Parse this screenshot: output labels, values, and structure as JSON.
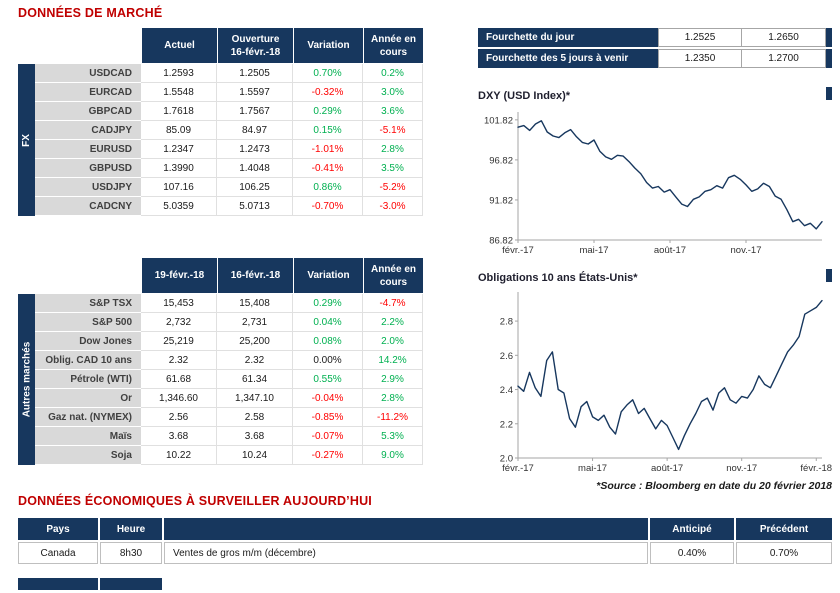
{
  "sections": {
    "market_title": "DONNÉES DE MARCHÉ",
    "econ_title": "DONNÉES ÉCONOMIQUES À SURVEILLER AUJOURD’HUI",
    "source_note": "*Source : Bloomberg en date du 20 février 2018"
  },
  "colors": {
    "navy": "#17375E",
    "title_red": "#C00000",
    "label_gray": "#D9D9D9",
    "positive": "#00B050",
    "negative": "#FF0000",
    "neutral": "#1a1a1a",
    "chart_line": "#17375E",
    "axis_gray": "#A6A6A6"
  },
  "fx_table": {
    "side_label": "FX",
    "col_headers": [
      [
        "Actuel"
      ],
      [
        "Ouverture",
        "16-févr.-18"
      ],
      [
        "Variation"
      ],
      [
        "Année en",
        "cours"
      ]
    ],
    "col_keys": [
      "actuel",
      "ouverture",
      "variation",
      "annee"
    ],
    "rows": [
      [
        "USDCAD",
        "1.2593",
        "1.2505",
        "0.70%",
        "0.2%"
      ],
      [
        "EURCAD",
        "1.5548",
        "1.5597",
        "-0.32%",
        "3.0%"
      ],
      [
        "GBPCAD",
        "1.7618",
        "1.7567",
        "0.29%",
        "3.6%"
      ],
      [
        "CADJPY",
        "85.09",
        "84.97",
        "0.15%",
        "-5.1%"
      ],
      [
        "EURUSD",
        "1.2347",
        "1.2473",
        "-1.01%",
        "2.8%"
      ],
      [
        "GBPUSD",
        "1.3990",
        "1.4048",
        "-0.41%",
        "3.5%"
      ],
      [
        "USDJPY",
        "107.16",
        "106.25",
        "0.86%",
        "-5.2%"
      ],
      [
        "CADCNY",
        "5.0359",
        "5.0713",
        "-0.70%",
        "-3.0%"
      ]
    ]
  },
  "markets_table": {
    "side_label": "Autres marchés",
    "col_headers": [
      [
        "19-févr.-18"
      ],
      [
        "16-févr.-18"
      ],
      [
        "Variation"
      ],
      [
        "Année en",
        "cours"
      ]
    ],
    "col_keys": [
      "19fev",
      "16fev",
      "variation",
      "annee"
    ],
    "rows": [
      [
        "S&P TSX",
        "15,453",
        "15,408",
        "0.29%",
        "-4.7%"
      ],
      [
        "S&P 500",
        "2,732",
        "2,731",
        "0.04%",
        "2.2%"
      ],
      [
        "Dow Jones",
        "25,219",
        "25,200",
        "0.08%",
        "2.0%"
      ],
      [
        "Oblig. CAD 10 ans",
        "2.32",
        "2.32",
        "0.00%",
        "14.2%"
      ],
      [
        "Pétrole (WTI)",
        "61.68",
        "61.34",
        "0.55%",
        "2.9%"
      ],
      [
        "Or",
        "1,346.60",
        "1,347.10",
        "-0.04%",
        "2.8%"
      ],
      [
        "Gaz nat. (NYMEX)",
        "2.56",
        "2.58",
        "-0.85%",
        "-11.2%"
      ],
      [
        "Maïs",
        "3.68",
        "3.68",
        "-0.07%",
        "5.3%"
      ],
      [
        "Soja",
        "10.22",
        "10.24",
        "-0.27%",
        "9.0%"
      ]
    ]
  },
  "fx_range": {
    "rows": [
      {
        "label": "Fourchette du jour",
        "low": "1.2525",
        "high": "1.2650"
      },
      {
        "label": "Fourchette des 5 jours à venir",
        "low": "1.2350",
        "high": "1.2700"
      }
    ]
  },
  "chart_data": [
    {
      "type": "line",
      "title": "DXY (USD Index)*",
      "ylim": [
        86.82,
        102.8
      ],
      "y_tick_values": [
        86.82,
        91.82,
        96.82,
        101.82
      ],
      "y_tick_labels": [
        "86.82",
        "91.82",
        "96.82",
        "101.82"
      ],
      "x_tick_labels": [
        "févr.-17",
        "mai-17",
        "août-17",
        "nov.-17"
      ],
      "x_tick_positions": [
        0,
        13,
        26,
        39
      ],
      "values": [
        100.9,
        101.1,
        100.5,
        101.3,
        101.7,
        100.3,
        99.8,
        99.6,
        100.2,
        100.6,
        99.7,
        99.0,
        98.8,
        99.3,
        97.9,
        97.2,
        96.9,
        97.4,
        97.3,
        96.6,
        95.8,
        95.1,
        94.0,
        93.3,
        93.5,
        92.8,
        93.1,
        92.2,
        91.3,
        91.0,
        91.9,
        92.2,
        92.9,
        93.1,
        93.6,
        93.3,
        94.6,
        94.9,
        94.4,
        93.7,
        92.9,
        93.2,
        93.9,
        93.5,
        92.3,
        91.9,
        90.6,
        89.1,
        89.4,
        88.6,
        88.9,
        88.2,
        89.1
      ]
    },
    {
      "type": "line",
      "title": "Obligations 10 ans États-Unis*",
      "ylim": [
        2.0,
        2.97
      ],
      "y_tick_values": [
        2.0,
        2.2,
        2.4,
        2.6,
        2.8
      ],
      "y_tick_labels": [
        "2.0",
        "2.2",
        "2.4",
        "2.6",
        "2.8"
      ],
      "x_tick_labels": [
        "févr.-17",
        "mai-17",
        "août-17",
        "nov.-17",
        "févr.-18"
      ],
      "x_tick_positions": [
        0,
        13,
        26,
        39,
        52
      ],
      "values": [
        2.42,
        2.39,
        2.5,
        2.41,
        2.36,
        2.57,
        2.62,
        2.4,
        2.38,
        2.23,
        2.18,
        2.3,
        2.33,
        2.24,
        2.22,
        2.25,
        2.18,
        2.14,
        2.27,
        2.31,
        2.34,
        2.26,
        2.29,
        2.23,
        2.17,
        2.22,
        2.19,
        2.12,
        2.05,
        2.13,
        2.2,
        2.26,
        2.33,
        2.35,
        2.28,
        2.38,
        2.41,
        2.34,
        2.32,
        2.36,
        2.35,
        2.4,
        2.48,
        2.43,
        2.41,
        2.48,
        2.55,
        2.62,
        2.66,
        2.71,
        2.84,
        2.86,
        2.88,
        2.92
      ]
    }
  ],
  "econ_table": {
    "headers": [
      "Pays",
      "Heure",
      "",
      "Anticipé",
      "Précédent"
    ],
    "header_keys": [
      "pays",
      "heure",
      "spacer",
      "anticipe",
      "precedent"
    ],
    "rows": [
      [
        "Canada",
        "8h30",
        "Ventes de gros m/m (décembre)",
        "0.40%",
        "0.70%"
      ]
    ]
  }
}
